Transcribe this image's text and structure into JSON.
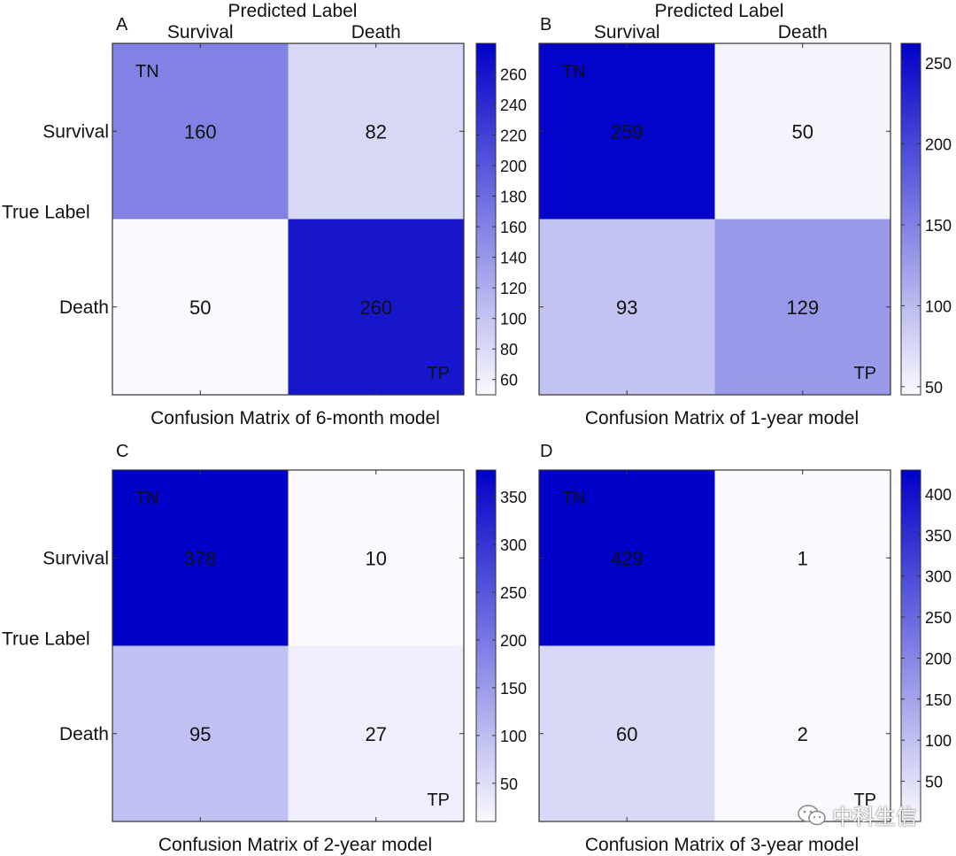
{
  "colors": {
    "low": "#fafafe",
    "high": "#0000c8",
    "frame": "#333333",
    "text": "#111111"
  },
  "watermark": {
    "text": "中科生信",
    "icon": "wechat-icon"
  },
  "chart_data": [
    {
      "type": "heatmap",
      "panel_letter": "A",
      "title": "Confusion Matrix of 6-month model",
      "x_axis_title": "Predicted Label",
      "y_axis_title": "True Label",
      "x_categories": [
        "Survival",
        "Death"
      ],
      "y_categories": [
        "Survival",
        "Death"
      ],
      "values": [
        [
          160,
          82
        ],
        [
          50,
          260
        ]
      ],
      "cell_tags": [
        [
          "TN",
          ""
        ],
        [
          "",
          "TP"
        ]
      ],
      "color_range": [
        50,
        280
      ],
      "colorbar_ticks": [
        60,
        80,
        100,
        120,
        140,
        160,
        180,
        200,
        220,
        240,
        260
      ]
    },
    {
      "type": "heatmap",
      "panel_letter": "B",
      "title": "Confusion Matrix of 1-year model",
      "x_axis_title": "Predicted Label",
      "y_axis_title": "",
      "x_categories": [
        "Survival",
        "Death"
      ],
      "y_categories": [
        "",
        ""
      ],
      "values": [
        [
          259,
          50
        ],
        [
          93,
          129
        ]
      ],
      "cell_tags": [
        [
          "TN",
          ""
        ],
        [
          "",
          "TP"
        ]
      ],
      "color_range": [
        45,
        262
      ],
      "colorbar_ticks": [
        50,
        100,
        150,
        200,
        250
      ]
    },
    {
      "type": "heatmap",
      "panel_letter": "C",
      "title": "Confusion Matrix of 2-year model",
      "x_axis_title": "",
      "y_axis_title": "True Label",
      "x_categories": [
        "",
        ""
      ],
      "y_categories": [
        "Survival",
        "Death"
      ],
      "values": [
        [
          378,
          10
        ],
        [
          95,
          27
        ]
      ],
      "cell_tags": [
        [
          "TN",
          ""
        ],
        [
          "",
          "TP"
        ]
      ],
      "color_range": [
        10,
        378
      ],
      "colorbar_ticks": [
        50,
        100,
        150,
        200,
        250,
        300,
        350
      ]
    },
    {
      "type": "heatmap",
      "panel_letter": "D",
      "title": "Confusion Matrix of 3-year model",
      "x_axis_title": "",
      "y_axis_title": "",
      "x_categories": [
        "",
        ""
      ],
      "y_categories": [
        "",
        ""
      ],
      "values": [
        [
          429,
          1
        ],
        [
          60,
          2
        ]
      ],
      "cell_tags": [
        [
          "TN",
          ""
        ],
        [
          "",
          "TP"
        ]
      ],
      "color_range": [
        1,
        429
      ],
      "colorbar_ticks": [
        50,
        100,
        150,
        200,
        250,
        300,
        350,
        400
      ]
    }
  ]
}
